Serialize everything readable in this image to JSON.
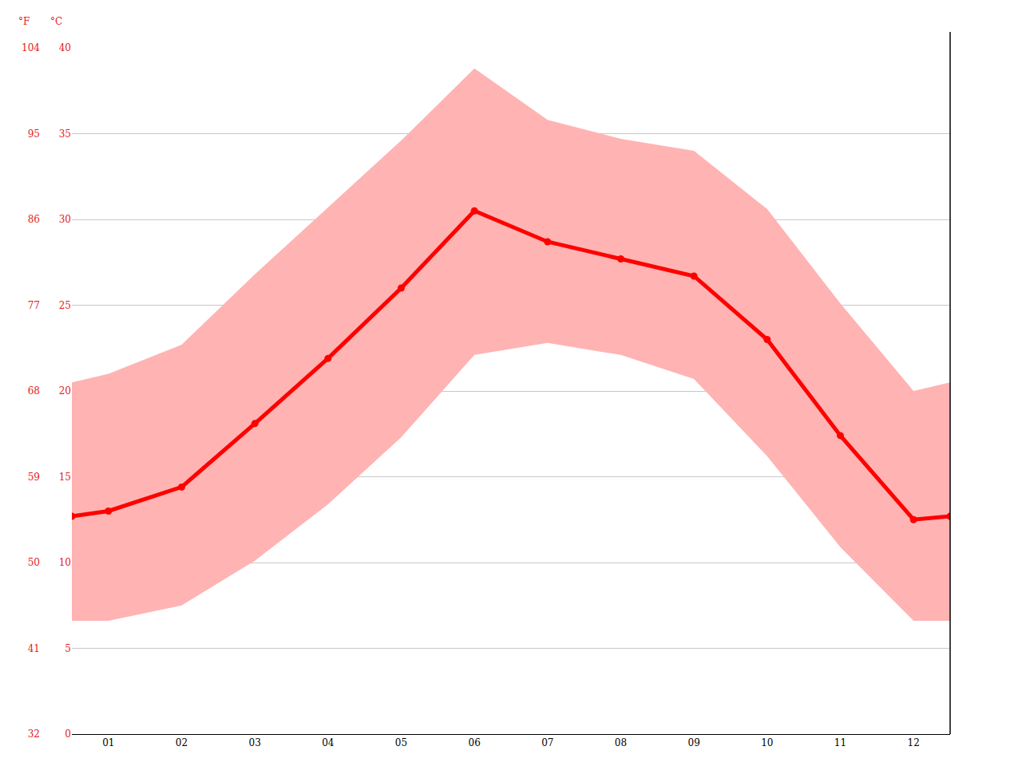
{
  "chart_data": {
    "type": "line",
    "x": [
      0.5,
      1,
      2,
      3,
      4,
      5,
      6,
      7,
      8,
      9,
      10,
      11,
      12,
      12.5
    ],
    "values": [
      12.7,
      13.0,
      14.4,
      18.1,
      21.9,
      26.0,
      30.5,
      28.7,
      27.7,
      26.7,
      23.0,
      17.4,
      12.5,
      12.7
    ],
    "color": "#ff0000",
    "marker": "circle",
    "band": {
      "low": [
        6.6,
        6.6,
        7.5,
        10.1,
        13.4,
        17.3,
        22.1,
        22.8,
        22.1,
        20.7,
        16.2,
        10.9,
        6.6,
        6.6
      ],
      "high": [
        20.5,
        21.0,
        22.7,
        26.8,
        30.7,
        34.6,
        38.8,
        35.8,
        34.7,
        34.0,
        30.6,
        25.1,
        20.0,
        20.5
      ],
      "color": "#ffb3b3"
    },
    "xlim": [
      0.5,
      12.5
    ],
    "xticks": [
      {
        "value": 1,
        "label": "01"
      },
      {
        "value": 2,
        "label": "02"
      },
      {
        "value": 3,
        "label": "03"
      },
      {
        "value": 4,
        "label": "04"
      },
      {
        "value": 5,
        "label": "05"
      },
      {
        "value": 6,
        "label": "06"
      },
      {
        "value": 7,
        "label": "07"
      },
      {
        "value": 8,
        "label": "08"
      },
      {
        "value": 9,
        "label": "09"
      },
      {
        "value": 10,
        "label": "10"
      },
      {
        "value": 11,
        "label": "11"
      },
      {
        "value": 12,
        "label": "12"
      }
    ],
    "ylabel": "°C",
    "ylim": [
      0,
      40
    ],
    "yticks": [
      0,
      5,
      10,
      15,
      20,
      25,
      30,
      35,
      40
    ],
    "y2label": "°F",
    "y2lim": [
      32,
      104
    ],
    "y2ticks": [
      32,
      41,
      50,
      59,
      68,
      77,
      86,
      95,
      104
    ],
    "grid": true
  }
}
